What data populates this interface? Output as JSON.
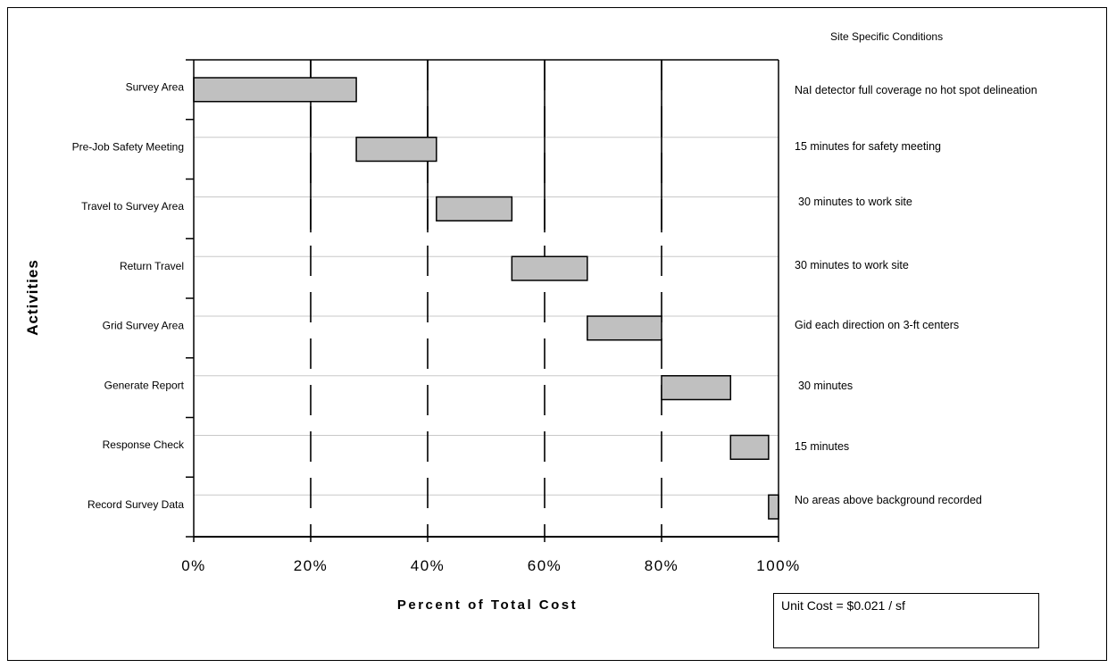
{
  "site_conditions": {
    "title": "Site Specific Conditions",
    "items": [
      "NaI detector full coverage no hot spot delineation",
      "15 minutes for safety meeting",
      "30 minutes to work site",
      "30 minutes to work site",
      "Gid each direction on 3-ft centers",
      "30 minutes",
      "15 minutes",
      "No areas above background recorded"
    ]
  },
  "unit_cost": {
    "label": "Unit Cost = $0.021 / sf"
  },
  "chart_data": {
    "type": "bar",
    "subtype": "floating-horizontal-bar",
    "title": "",
    "xlabel": "Percent of Total Cost",
    "ylabel": "Activities",
    "xlim": [
      0,
      100
    ],
    "x_ticks": [
      0,
      20,
      40,
      60,
      80,
      100
    ],
    "x_tick_labels": [
      "0%",
      "20%",
      "40%",
      "60%",
      "80%",
      "100%"
    ],
    "categories": [
      "Survey Area",
      "Pre-Job Safety Meeting",
      "Travel to Survey Area",
      "Return Travel",
      "Grid Survey Area",
      "Generate Report",
      "Response Check",
      "Record Survey Data"
    ],
    "series": [
      {
        "starts": [
          0,
          27.8,
          41.5,
          54.4,
          67.3,
          80.0,
          91.8,
          98.3
        ],
        "values": [
          27.8,
          13.7,
          12.9,
          12.9,
          12.7,
          11.8,
          6.5,
          1.7
        ]
      }
    ],
    "grid": true,
    "legend": "none",
    "colors": {
      "bar_fill": "#c0c0c0",
      "bar_stroke": "#000000",
      "gridline": "#000000",
      "row_line": "#c8c8c8"
    }
  }
}
